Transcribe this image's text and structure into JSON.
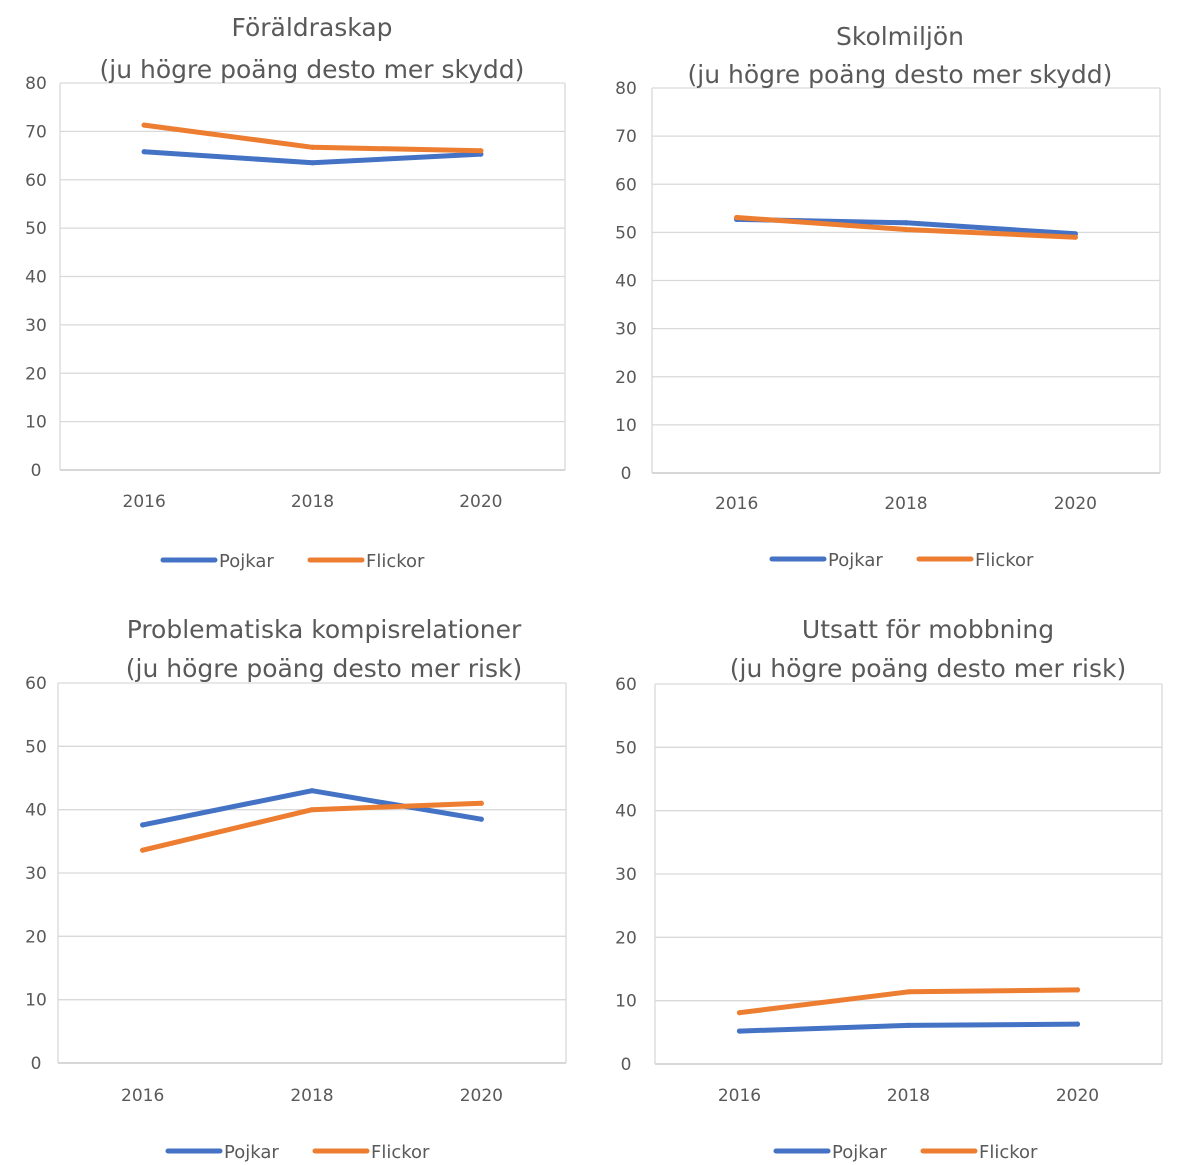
{
  "chart_data": [
    {
      "type": "line",
      "title": "Föräldraskap",
      "subtitle": "(ju högre poäng desto mer skydd)",
      "categories": [
        "2016",
        "2018",
        "2020"
      ],
      "ylim": [
        0,
        80
      ],
      "yticks": [
        0,
        10,
        20,
        30,
        40,
        50,
        60,
        70,
        80
      ],
      "grid": true,
      "legend_position": "bottom",
      "series": [
        {
          "name": "Pojkar",
          "color": "#4472c4",
          "values": [
            65.8,
            63.5,
            65.3
          ]
        },
        {
          "name": "Flickor",
          "color": "#ed7d31",
          "values": [
            71.3,
            66.7,
            66.0
          ]
        }
      ]
    },
    {
      "type": "line",
      "title": "Skolmiljön",
      "subtitle": "(ju högre poäng desto mer skydd)",
      "categories": [
        "2016",
        "2018",
        "2020"
      ],
      "ylim": [
        0,
        80
      ],
      "yticks": [
        0,
        10,
        20,
        30,
        40,
        50,
        60,
        70,
        80
      ],
      "grid": true,
      "legend_position": "bottom",
      "series": [
        {
          "name": "Pojkar",
          "color": "#4472c4",
          "values": [
            52.7,
            52.0,
            49.7
          ]
        },
        {
          "name": "Flickor",
          "color": "#ed7d31",
          "values": [
            53.1,
            50.6,
            49.0
          ]
        }
      ]
    },
    {
      "type": "line",
      "title": "Problematiska kompisrelationer",
      "subtitle": "(ju högre poäng desto mer risk)",
      "categories": [
        "2016",
        "2018",
        "2020"
      ],
      "ylim": [
        0,
        60
      ],
      "yticks": [
        0,
        10,
        20,
        30,
        40,
        50,
        60
      ],
      "grid": true,
      "legend_position": "bottom",
      "series": [
        {
          "name": "Pojkar",
          "color": "#4472c4",
          "values": [
            37.6,
            43.0,
            38.5
          ]
        },
        {
          "name": "Flickor",
          "color": "#ed7d31",
          "values": [
            33.6,
            40.0,
            41.0
          ]
        }
      ]
    },
    {
      "type": "line",
      "title": "Utsatt för mobbning",
      "subtitle": "(ju högre poäng desto mer risk)",
      "categories": [
        "2016",
        "2018",
        "2020"
      ],
      "ylim": [
        0,
        60
      ],
      "yticks": [
        0,
        10,
        20,
        30,
        40,
        50,
        60
      ],
      "grid": true,
      "legend_position": "bottom",
      "series": [
        {
          "name": "Pojkar",
          "color": "#4472c4",
          "values": [
            5.2,
            6.1,
            6.3
          ]
        },
        {
          "name": "Flickor",
          "color": "#ed7d31",
          "values": [
            8.1,
            11.4,
            11.7
          ]
        }
      ]
    }
  ]
}
